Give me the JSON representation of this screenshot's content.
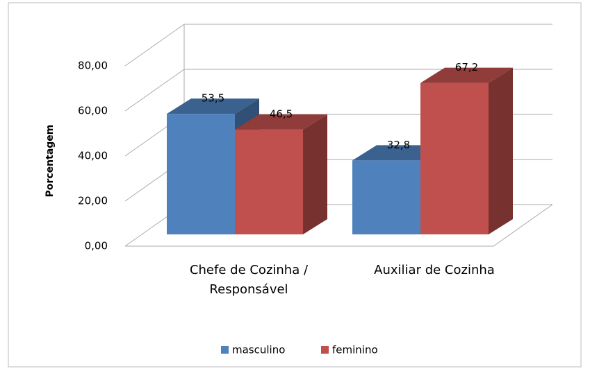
{
  "chart_data": {
    "type": "bar3d",
    "y_label": "Porcentagem",
    "categories": [
      "Chefe de Cozinha / Responsável",
      "Auxiliar de Cozinha"
    ],
    "series": [
      {
        "name": "masculino",
        "color": "#4f81bd",
        "values": [
          53.5,
          32.8
        ],
        "value_labels": [
          "53,5",
          "32,8"
        ]
      },
      {
        "name": "feminino",
        "color": "#c0504d",
        "values": [
          46.5,
          67.2
        ],
        "value_labels": [
          "46,5",
          "67,2"
        ]
      }
    ],
    "ylim": [
      0,
      80
    ],
    "yticks": [
      {
        "value": 0,
        "label": "0,00"
      },
      {
        "value": 20,
        "label": "20,00"
      },
      {
        "value": 40,
        "label": "40,00"
      },
      {
        "value": 60,
        "label": "60,00"
      },
      {
        "value": 80,
        "label": "80,00"
      }
    ],
    "grid": true,
    "legend": "bottom"
  }
}
